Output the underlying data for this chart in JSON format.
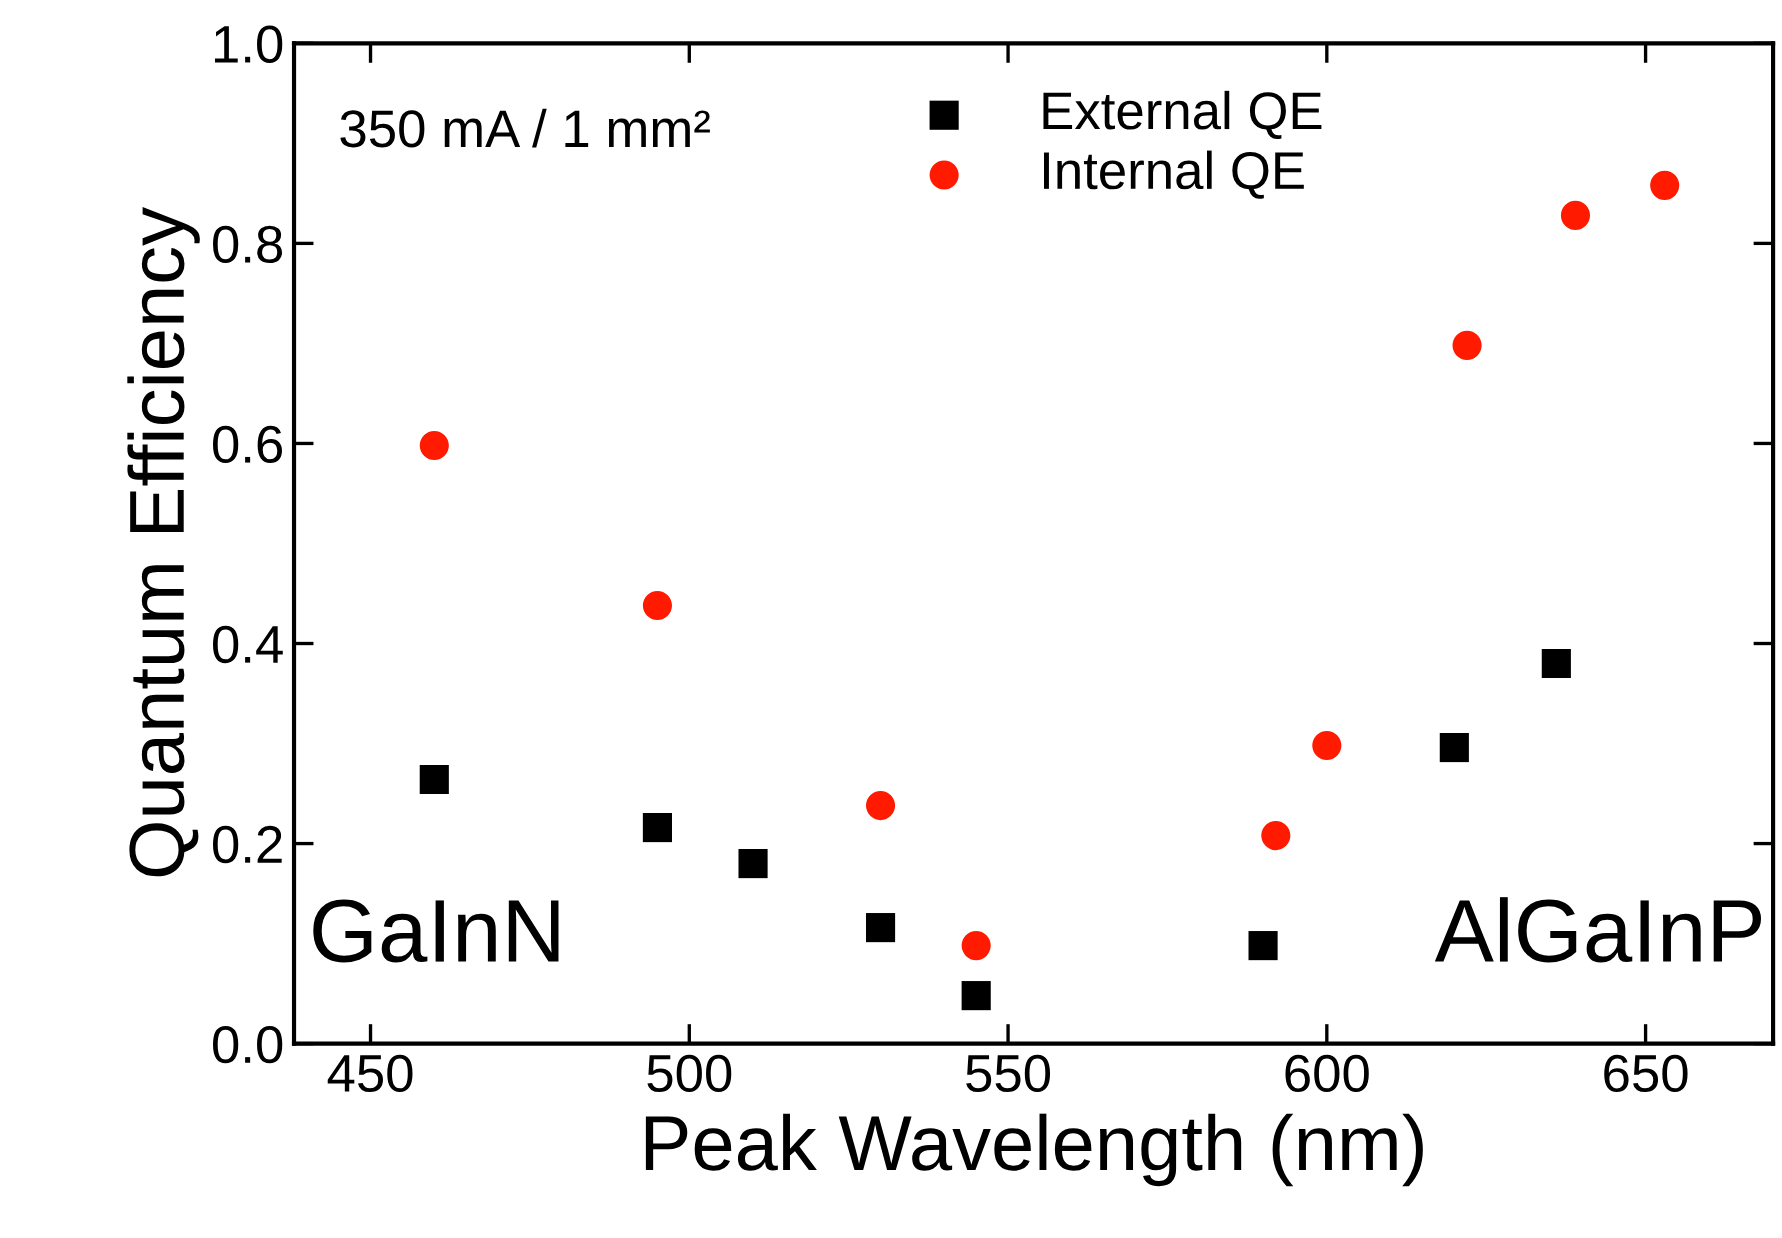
{
  "chart_data": {
    "type": "scatter",
    "xlabel": "Peak Wavelength (nm)",
    "ylabel": "Quantum Efficiency",
    "annotations": [
      "350 mA / 1 mm²",
      "GaInN",
      "AlGaInP"
    ],
    "series": [
      {
        "name": "External QE",
        "color": "#000000",
        "marker": "square",
        "x": [
          460,
          495,
          510,
          530,
          545,
          590,
          620,
          636
        ],
        "values": [
          0.264,
          0.216,
          0.18,
          0.116,
          0.048,
          0.098,
          0.296,
          0.38
        ]
      },
      {
        "name": "Internal QE",
        "color": "#ff1a00",
        "marker": "circle",
        "x": [
          460,
          495,
          530,
          545,
          592,
          600,
          622,
          639,
          653
        ],
        "values": [
          0.598,
          0.438,
          0.238,
          0.098,
          0.208,
          0.298,
          0.698,
          0.828,
          0.858
        ]
      }
    ],
    "xlim": [
      438,
      670
    ],
    "xticks": [
      450,
      500,
      550,
      600,
      650
    ],
    "ylim": [
      0,
      1.0
    ],
    "yticks": [
      {
        "value": 0,
        "label": "0.0"
      },
      0.2,
      0.4,
      0.6,
      0.8,
      {
        "value": 1,
        "label": "1.0"
      }
    ],
    "grid": false,
    "legend": "top"
  }
}
